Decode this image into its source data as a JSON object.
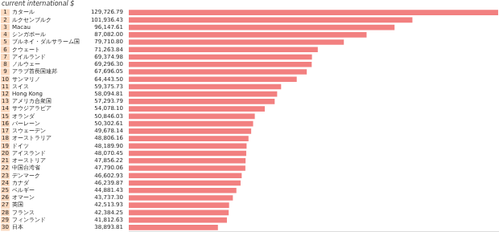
{
  "chart_data": {
    "type": "bar",
    "orientation": "horizontal",
    "title": "current international $",
    "ranks": [
      1,
      2,
      3,
      4,
      5,
      6,
      7,
      8,
      9,
      10,
      11,
      12,
      13,
      14,
      15,
      16,
      17,
      18,
      19,
      20,
      21,
      22,
      23,
      24,
      25,
      26,
      27,
      28,
      29,
      30
    ],
    "categories": [
      "カタール",
      "ルクセンブルク",
      "Macau",
      "シンガポール",
      "ブルネイ・ダルサラーム国",
      "クウェート",
      "アイルランド",
      "ノルウェー",
      "アラブ首長国連邦",
      "サンマリノ",
      "スイス",
      "Hong Kong",
      "アメリカ合衆国",
      "サウジアラビア",
      "オランダ",
      "バーレーン",
      "スウェーデン",
      "オーストラリア",
      "ドイツ",
      "アイスランド",
      "オーストリア",
      "中国台湾省",
      "デンマーク",
      "カナダ",
      "ベルギー",
      "オマーン",
      "英国",
      "フランス",
      "フィンランド",
      "日本"
    ],
    "values": [
      129726.79,
      101936.43,
      96147.61,
      87082.0,
      79710.8,
      71263.84,
      69374.98,
      69296.3,
      67696.05,
      64443.5,
      59375.73,
      58094.81,
      57293.79,
      54078.1,
      50846.03,
      50302.61,
      49678.14,
      48806.16,
      48189.9,
      48070.45,
      47856.22,
      47790.06,
      46602.93,
      46239.87,
      44881.43,
      43737.3,
      42513.93,
      42384.25,
      41812.63,
      38893.81
    ],
    "value_labels": [
      "129,726.79",
      "101,936.43",
      "96,147.61",
      "87,082.00",
      "79,710.80",
      "71,263.84",
      "69,374.98",
      "69,296.30",
      "67,696.05",
      "64,443.50",
      "59,375.73",
      "58,094.81",
      "57,293.79",
      "54,078.10",
      "50,846.03",
      "50,302.61",
      "49,678.14",
      "48,806.16",
      "48,189.90",
      "48,070.45",
      "47,856.22",
      "47,790.06",
      "46,602.93",
      "46,239.87",
      "44,881.43",
      "43,737.30",
      "42,513.93",
      "42,384.25",
      "41,812.63",
      "38,893.81"
    ],
    "data_labels": true,
    "color": "#f28080",
    "xlim": [
      10000,
      130000
    ],
    "tick_labels": false,
    "grid": false
  }
}
